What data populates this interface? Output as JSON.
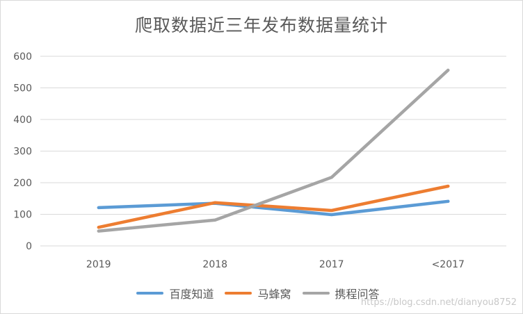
{
  "chart_data": {
    "type": "line",
    "title": "爬取数据近三年发布数据量统计",
    "xlabel": "",
    "ylabel": "",
    "categories": [
      "2019",
      "2018",
      "2017",
      "<2017"
    ],
    "series": [
      {
        "name": "百度知道",
        "color": "#5B9BD5",
        "values": [
          121,
          135,
          99,
          141
        ]
      },
      {
        "name": "马蜂窝",
        "color": "#ED7D31",
        "values": [
          59,
          137,
          112,
          189
        ]
      },
      {
        "name": "携程问答",
        "color": "#A5A5A5",
        "values": [
          47,
          82,
          217,
          556
        ]
      }
    ],
    "ylim": [
      0,
      600
    ],
    "yticks": [
      0,
      100,
      200,
      300,
      400,
      500,
      600
    ],
    "grid": true,
    "legend_position": "bottom"
  },
  "watermark": "https://blog.csdn.net/dianyou8752"
}
